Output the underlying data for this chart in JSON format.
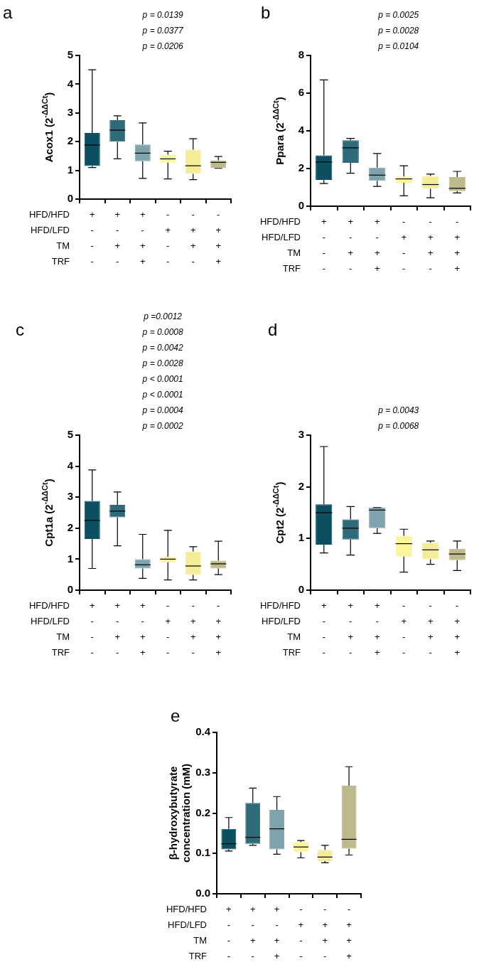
{
  "chart_data": [
    {
      "type": "box",
      "title": "a",
      "ylabel": "Acox1 (2$^{-ΔΔCt}$)",
      "xlabel": "HFD/HFD\nHFD/LFD\nTM\nTRF",
      "categories": [
        "+\n-\n-\n-",
        "+\n-\n+\n-",
        "+\n-\n+\n+",
        "-\n+\n-\n-",
        "-\n+\n+\n-",
        "-\n+\n+\n+"
      ],
      "colors": [
        "#0b4f60",
        "#2e6a79",
        "#7fa3ad",
        "#fbf59b",
        "#f3ed9a",
        "#bdb98a"
      ],
      "ylim": [
        0,
        5
      ],
      "yticks": [
        0,
        1,
        2,
        3,
        4,
        5
      ],
      "annotations": [
        "p = 0.0139",
        "p = 0.0377",
        "p = 0.0206"
      ],
      "boxes": [
        {
          "low": 1.1,
          "q1": 1.15,
          "median": 1.88,
          "q3": 2.3,
          "high": 4.5
        },
        {
          "low": 1.4,
          "q1": 2.0,
          "median": 2.4,
          "q3": 2.75,
          "high": 2.9
        },
        {
          "low": 0.72,
          "q1": 1.32,
          "median": 1.6,
          "q3": 1.9,
          "high": 2.65
        },
        {
          "low": 0.7,
          "q1": 1.27,
          "median": 1.4,
          "q3": 1.55,
          "high": 1.67
        },
        {
          "low": 0.68,
          "q1": 0.88,
          "median": 1.16,
          "q3": 1.72,
          "high": 2.1
        },
        {
          "low": 1.07,
          "q1": 1.08,
          "median": 1.28,
          "q3": 1.35,
          "high": 1.48
        }
      ]
    },
    {
      "type": "box",
      "title": "b",
      "ylabel": "Ppara (2$^{-ΔΔCt}$)",
      "xlabel": "HFD/HFD\nHFD/LFD\nTM\nTRF",
      "categories": [
        "+\n-\n-\n-",
        "+\n-\n+\n-",
        "+\n-\n+\n+",
        "-\n+\n-\n-",
        "-\n+\n+\n-",
        "-\n+\n+\n+"
      ],
      "colors": [
        "#0b4f60",
        "#2e6a79",
        "#7fa3ad",
        "#fbf59b",
        "#f3ed9a",
        "#bdb98a"
      ],
      "ylim": [
        0,
        8
      ],
      "yticks": [
        0,
        2,
        4,
        6,
        8
      ],
      "annotations": [
        "p = 0.0025",
        "p = 0.0028",
        "p = 0.0104"
      ],
      "boxes": [
        {
          "low": 1.2,
          "q1": 1.4,
          "median": 2.35,
          "q3": 2.7,
          "high": 6.7
        },
        {
          "low": 1.75,
          "q1": 2.3,
          "median": 3.1,
          "q3": 3.5,
          "high": 3.6
        },
        {
          "low": 1.05,
          "q1": 1.35,
          "median": 1.65,
          "q3": 2.05,
          "high": 2.8
        },
        {
          "low": 0.55,
          "q1": 1.25,
          "median": 1.45,
          "q3": 1.58,
          "high": 2.15
        },
        {
          "low": 0.45,
          "q1": 0.93,
          "median": 1.15,
          "q3": 1.6,
          "high": 1.7
        },
        {
          "low": 0.7,
          "q1": 0.8,
          "median": 0.95,
          "q3": 1.55,
          "high": 1.85
        }
      ]
    },
    {
      "type": "box",
      "title": "c",
      "ylabel": "Cpt1a (2$^{-ΔΔCt}$)",
      "xlabel": "HFD/HFD\nHFD/LFD\nTM\nTRF",
      "categories": [
        "+\n-\n-\n-",
        "+\n-\n+\n-",
        "+\n-\n+\n+",
        "-\n+\n-\n-",
        "-\n+\n+\n-",
        "-\n+\n+\n+"
      ],
      "colors": [
        "#0b4f60",
        "#2e6a79",
        "#7fa3ad",
        "#fbf59b",
        "#f3ed9a",
        "#bdb98a"
      ],
      "ylim": [
        0,
        5
      ],
      "yticks": [
        0,
        1,
        2,
        3,
        4,
        5
      ],
      "annotations": [
        "p =0.0012",
        "p = 0.0008",
        "p = 0.0042",
        "p = 0.0028",
        "p < 0.0001",
        "p < 0.0001",
        "p = 0.0004",
        "p = 0.0002"
      ],
      "boxes": [
        {
          "low": 0.7,
          "q1": 1.65,
          "median": 2.25,
          "q3": 2.88,
          "high": 3.88
        },
        {
          "low": 1.43,
          "q1": 2.35,
          "median": 2.55,
          "q3": 2.75,
          "high": 3.17
        },
        {
          "low": 0.38,
          "q1": 0.7,
          "median": 0.82,
          "q3": 1.0,
          "high": 1.8
        },
        {
          "low": 0.33,
          "q1": 0.9,
          "median": 1.0,
          "q3": 1.08,
          "high": 1.93
        },
        {
          "low": 0.33,
          "q1": 0.5,
          "median": 0.78,
          "q3": 1.25,
          "high": 1.4
        },
        {
          "low": 0.5,
          "q1": 0.7,
          "median": 0.85,
          "q3": 0.95,
          "high": 1.58
        }
      ]
    },
    {
      "type": "box",
      "title": "d",
      "ylabel": "Cpt2 (2$^{-ΔΔCt}$)",
      "xlabel": "HFD/HFD\nHFD/LFD\nTM\nTRF",
      "categories": [
        "+\n-\n-\n-",
        "+\n-\n+\n-",
        "+\n-\n+\n+",
        "-\n+\n-\n-",
        "-\n+\n+\n-",
        "-\n+\n+\n+"
      ],
      "colors": [
        "#0b4f60",
        "#2e6a79",
        "#7fa3ad",
        "#fbf59b",
        "#f3ed9a",
        "#bdb98a"
      ],
      "ylim": [
        0,
        3
      ],
      "yticks": [
        0,
        1,
        2,
        3
      ],
      "annotations": [
        "p = 0.0043",
        "p = 0.0068"
      ],
      "boxes": [
        {
          "low": 0.72,
          "q1": 0.88,
          "median": 1.5,
          "q3": 1.66,
          "high": 2.78
        },
        {
          "low": 0.68,
          "q1": 0.98,
          "median": 1.2,
          "q3": 1.37,
          "high": 1.62
        },
        {
          "low": 1.1,
          "q1": 1.2,
          "median": 1.55,
          "q3": 1.6,
          "high": 1.6
        },
        {
          "low": 0.35,
          "q1": 0.65,
          "median": 0.9,
          "q3": 1.05,
          "high": 1.18
        },
        {
          "low": 0.5,
          "q1": 0.6,
          "median": 0.78,
          "q3": 0.92,
          "high": 0.95
        },
        {
          "low": 0.38,
          "q1": 0.58,
          "median": 0.7,
          "q3": 0.8,
          "high": 0.95
        }
      ]
    },
    {
      "type": "box",
      "title": "e",
      "ylabel": "β-hydroxybutyrate concentration (mM)",
      "xlabel": "HFD/HFD\nHFD/LFD\nTM\nTRF",
      "categories": [
        "+\n-\n-\n-",
        "+\n-\n+\n-",
        "+\n-\n+\n+",
        "-\n+\n-\n-",
        "-\n+\n+\n-",
        "-\n+\n+\n+"
      ],
      "colors": [
        "#0b4f60",
        "#2e6a79",
        "#7fa3ad",
        "#fbf59b",
        "#f3ed9a",
        "#bdb98a"
      ],
      "ylim": [
        0,
        0.4
      ],
      "yticks": [
        {
          "value": 0,
          "label": "0.0"
        },
        {
          "value": 0.1,
          "label": "0.1"
        },
        {
          "value": 0.2,
          "label": "0.2"
        },
        {
          "value": 0.3,
          "label": "0.3"
        },
        {
          "value": 0.4,
          "label": "0.4"
        }
      ],
      "boxes": [
        {
          "low": 0.106,
          "q1": 0.11,
          "median": 0.124,
          "q3": 0.161,
          "high": 0.189
        },
        {
          "low": 0.12,
          "q1": 0.124,
          "median": 0.14,
          "q3": 0.225,
          "high": 0.262
        },
        {
          "low": 0.098,
          "q1": 0.11,
          "median": 0.161,
          "q3": 0.208,
          "high": 0.241
        },
        {
          "low": 0.089,
          "q1": 0.103,
          "median": 0.116,
          "q3": 0.128,
          "high": 0.132
        },
        {
          "low": 0.077,
          "q1": 0.081,
          "median": 0.091,
          "q3": 0.109,
          "high": 0.12
        },
        {
          "low": 0.096,
          "q1": 0.112,
          "median": 0.135,
          "q3": 0.268,
          "high": 0.315
        }
      ]
    }
  ]
}
